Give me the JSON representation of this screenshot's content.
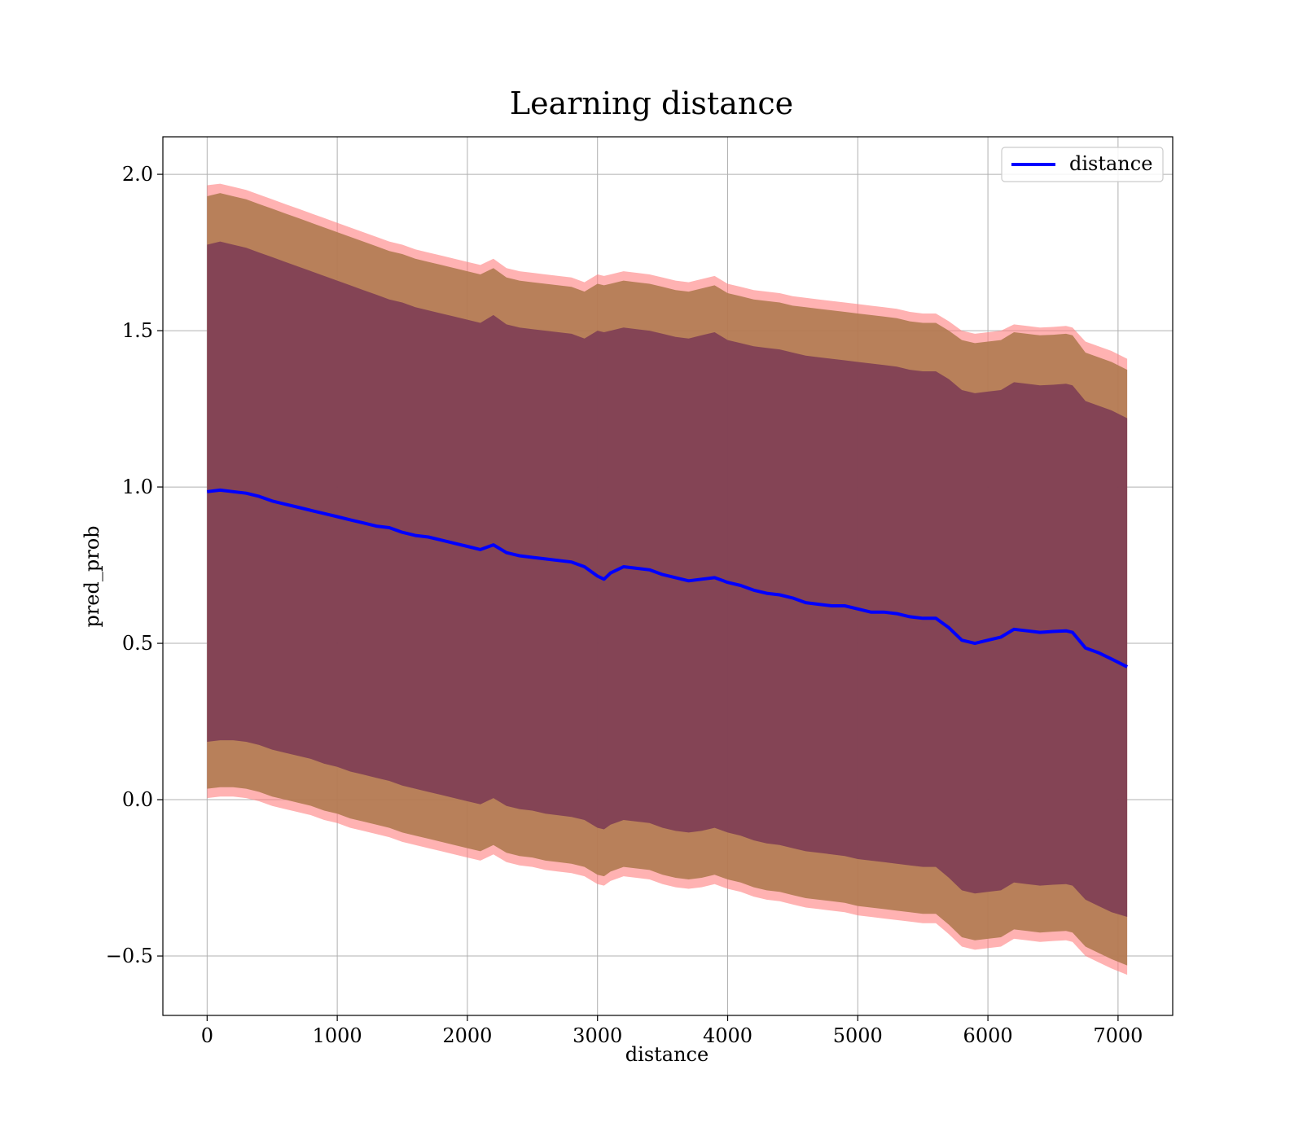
{
  "chart_data": {
    "type": "line",
    "title": "Learning distance",
    "xlabel": "distance",
    "ylabel": "pred_prob",
    "xlim": [
      -340,
      7420
    ],
    "ylim": [
      -0.69,
      2.12
    ],
    "xticks": [
      0,
      1000,
      2000,
      3000,
      4000,
      5000,
      6000,
      7000
    ],
    "xtick_labels": [
      "0",
      "1000",
      "2000",
      "3000",
      "4000",
      "5000",
      "6000",
      "7000"
    ],
    "yticks": [
      -0.5,
      0.0,
      0.5,
      1.0,
      1.5,
      2.0
    ],
    "ytick_labels": [
      "−0.5",
      "0.0",
      "0.5",
      "1.0",
      "1.5",
      "2.0"
    ],
    "grid": true,
    "legend": {
      "position": "top-right",
      "entries": [
        "distance"
      ]
    },
    "colors": {
      "line": "#0000ff",
      "band_outer": "#ff7f7f",
      "band_middle": "#b07a50",
      "band_inner": "#7a3a55"
    },
    "x": [
      0,
      100,
      200,
      300,
      400,
      500,
      600,
      700,
      800,
      900,
      1000,
      1100,
      1200,
      1300,
      1400,
      1500,
      1600,
      1700,
      1800,
      1900,
      2000,
      2100,
      2200,
      2300,
      2400,
      2500,
      2600,
      2700,
      2800,
      2900,
      3000,
      3050,
      3100,
      3200,
      3300,
      3400,
      3500,
      3600,
      3700,
      3800,
      3900,
      4000,
      4100,
      4200,
      4300,
      4400,
      4500,
      4600,
      4700,
      4800,
      4900,
      5000,
      5100,
      5200,
      5300,
      5400,
      5500,
      5600,
      5700,
      5800,
      5900,
      6000,
      6100,
      6200,
      6300,
      6400,
      6500,
      6600,
      6650,
      6750,
      6850,
      6950,
      7070
    ],
    "series": [
      {
        "name": "distance",
        "values": [
          0.985,
          0.99,
          0.985,
          0.98,
          0.97,
          0.955,
          0.945,
          0.935,
          0.925,
          0.915,
          0.905,
          0.895,
          0.885,
          0.875,
          0.87,
          0.855,
          0.845,
          0.84,
          0.83,
          0.82,
          0.81,
          0.8,
          0.815,
          0.79,
          0.78,
          0.775,
          0.77,
          0.765,
          0.76,
          0.745,
          0.715,
          0.705,
          0.725,
          0.745,
          0.74,
          0.735,
          0.72,
          0.71,
          0.7,
          0.705,
          0.71,
          0.695,
          0.685,
          0.67,
          0.66,
          0.655,
          0.645,
          0.63,
          0.625,
          0.62,
          0.62,
          0.61,
          0.6,
          0.6,
          0.595,
          0.585,
          0.58,
          0.58,
          0.55,
          0.51,
          0.5,
          0.51,
          0.52,
          0.545,
          0.54,
          0.535,
          0.538,
          0.54,
          0.535,
          0.485,
          0.47,
          0.45,
          0.425
        ]
      }
    ],
    "bands": [
      {
        "layer": "outer",
        "upper": [
          1.965,
          1.97,
          1.96,
          1.95,
          1.935,
          1.92,
          1.905,
          1.89,
          1.875,
          1.86,
          1.845,
          1.83,
          1.815,
          1.8,
          1.785,
          1.775,
          1.76,
          1.75,
          1.74,
          1.73,
          1.72,
          1.71,
          1.73,
          1.7,
          1.69,
          1.685,
          1.68,
          1.675,
          1.67,
          1.655,
          1.68,
          1.675,
          1.68,
          1.69,
          1.685,
          1.68,
          1.67,
          1.66,
          1.655,
          1.665,
          1.675,
          1.65,
          1.64,
          1.63,
          1.625,
          1.62,
          1.61,
          1.605,
          1.6,
          1.595,
          1.59,
          1.585,
          1.58,
          1.575,
          1.57,
          1.56,
          1.555,
          1.555,
          1.53,
          1.5,
          1.49,
          1.495,
          1.5,
          1.52,
          1.515,
          1.51,
          1.512,
          1.515,
          1.51,
          1.465,
          1.45,
          1.435,
          1.41
        ],
        "lower": [
          0.005,
          0.01,
          0.01,
          0.005,
          -0.005,
          -0.02,
          -0.03,
          -0.04,
          -0.05,
          -0.065,
          -0.075,
          -0.09,
          -0.1,
          -0.11,
          -0.12,
          -0.135,
          -0.145,
          -0.155,
          -0.165,
          -0.175,
          -0.185,
          -0.195,
          -0.175,
          -0.2,
          -0.21,
          -0.215,
          -0.225,
          -0.23,
          -0.235,
          -0.245,
          -0.27,
          -0.275,
          -0.26,
          -0.245,
          -0.25,
          -0.255,
          -0.27,
          -0.28,
          -0.285,
          -0.28,
          -0.27,
          -0.285,
          -0.295,
          -0.31,
          -0.32,
          -0.325,
          -0.335,
          -0.345,
          -0.35,
          -0.355,
          -0.36,
          -0.37,
          -0.375,
          -0.38,
          -0.385,
          -0.39,
          -0.395,
          -0.395,
          -0.43,
          -0.47,
          -0.48,
          -0.475,
          -0.47,
          -0.445,
          -0.45,
          -0.455,
          -0.452,
          -0.45,
          -0.455,
          -0.5,
          -0.52,
          -0.54,
          -0.56
        ]
      },
      {
        "layer": "middle",
        "upper": [
          1.93,
          1.94,
          1.93,
          1.92,
          1.905,
          1.89,
          1.875,
          1.86,
          1.845,
          1.83,
          1.815,
          1.8,
          1.785,
          1.77,
          1.755,
          1.745,
          1.73,
          1.72,
          1.71,
          1.7,
          1.69,
          1.68,
          1.7,
          1.67,
          1.66,
          1.655,
          1.65,
          1.645,
          1.64,
          1.625,
          1.65,
          1.645,
          1.65,
          1.66,
          1.655,
          1.65,
          1.64,
          1.63,
          1.625,
          1.635,
          1.645,
          1.62,
          1.61,
          1.6,
          1.595,
          1.59,
          1.58,
          1.575,
          1.57,
          1.565,
          1.56,
          1.555,
          1.55,
          1.545,
          1.54,
          1.53,
          1.525,
          1.525,
          1.5,
          1.47,
          1.46,
          1.465,
          1.47,
          1.495,
          1.49,
          1.485,
          1.487,
          1.49,
          1.485,
          1.43,
          1.415,
          1.4,
          1.375
        ],
        "lower": [
          0.035,
          0.04,
          0.04,
          0.035,
          0.025,
          0.01,
          0.0,
          -0.01,
          -0.02,
          -0.035,
          -0.045,
          -0.06,
          -0.07,
          -0.08,
          -0.09,
          -0.105,
          -0.115,
          -0.125,
          -0.135,
          -0.145,
          -0.155,
          -0.165,
          -0.145,
          -0.17,
          -0.18,
          -0.185,
          -0.195,
          -0.2,
          -0.205,
          -0.215,
          -0.24,
          -0.245,
          -0.23,
          -0.215,
          -0.22,
          -0.225,
          -0.24,
          -0.25,
          -0.255,
          -0.25,
          -0.24,
          -0.255,
          -0.265,
          -0.28,
          -0.29,
          -0.295,
          -0.305,
          -0.315,
          -0.32,
          -0.325,
          -0.33,
          -0.34,
          -0.345,
          -0.35,
          -0.355,
          -0.36,
          -0.365,
          -0.365,
          -0.4,
          -0.44,
          -0.45,
          -0.445,
          -0.44,
          -0.415,
          -0.42,
          -0.425,
          -0.422,
          -0.42,
          -0.425,
          -0.47,
          -0.49,
          -0.51,
          -0.53
        ]
      },
      {
        "layer": "inner",
        "upper": [
          1.775,
          1.785,
          1.775,
          1.765,
          1.75,
          1.735,
          1.72,
          1.705,
          1.69,
          1.675,
          1.66,
          1.645,
          1.63,
          1.615,
          1.6,
          1.59,
          1.575,
          1.565,
          1.555,
          1.545,
          1.535,
          1.525,
          1.55,
          1.52,
          1.51,
          1.505,
          1.5,
          1.495,
          1.49,
          1.475,
          1.5,
          1.495,
          1.5,
          1.51,
          1.505,
          1.5,
          1.49,
          1.48,
          1.475,
          1.485,
          1.495,
          1.47,
          1.46,
          1.45,
          1.445,
          1.44,
          1.43,
          1.42,
          1.415,
          1.41,
          1.405,
          1.4,
          1.395,
          1.39,
          1.385,
          1.375,
          1.37,
          1.37,
          1.345,
          1.31,
          1.3,
          1.305,
          1.31,
          1.335,
          1.33,
          1.325,
          1.327,
          1.33,
          1.325,
          1.275,
          1.26,
          1.245,
          1.22
        ],
        "lower": [
          0.185,
          0.19,
          0.19,
          0.185,
          0.175,
          0.16,
          0.15,
          0.14,
          0.13,
          0.115,
          0.105,
          0.09,
          0.08,
          0.07,
          0.06,
          0.045,
          0.035,
          0.025,
          0.015,
          0.005,
          -0.005,
          -0.015,
          0.005,
          -0.02,
          -0.03,
          -0.035,
          -0.045,
          -0.05,
          -0.055,
          -0.065,
          -0.09,
          -0.095,
          -0.08,
          -0.065,
          -0.07,
          -0.075,
          -0.09,
          -0.1,
          -0.105,
          -0.1,
          -0.09,
          -0.105,
          -0.115,
          -0.13,
          -0.14,
          -0.145,
          -0.155,
          -0.165,
          -0.17,
          -0.175,
          -0.18,
          -0.19,
          -0.195,
          -0.2,
          -0.205,
          -0.21,
          -0.215,
          -0.215,
          -0.25,
          -0.29,
          -0.3,
          -0.295,
          -0.29,
          -0.265,
          -0.27,
          -0.275,
          -0.272,
          -0.27,
          -0.275,
          -0.32,
          -0.34,
          -0.36,
          -0.375
        ]
      }
    ]
  }
}
